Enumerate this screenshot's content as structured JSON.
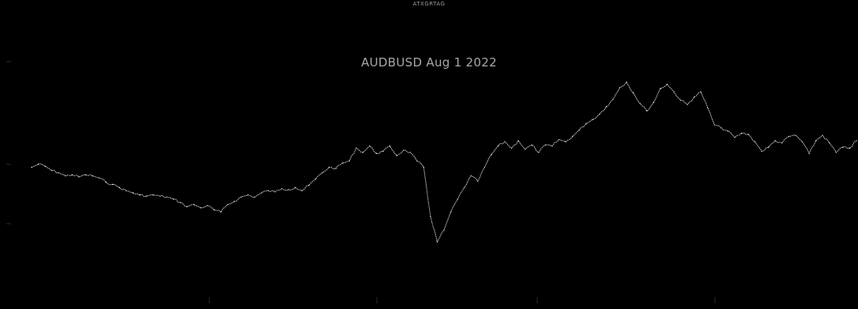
{
  "header": {
    "top_label": "ATXGRTAG"
  },
  "chart_data": {
    "type": "line",
    "title": "AUDBUSD Aug 1 2022",
    "xlabel": "",
    "ylabel": "",
    "grid": false,
    "legend": "none",
    "colors": {
      "background": "#000000",
      "line": "#c8c8c8",
      "text": "#a8a8a8"
    },
    "series": [
      {
        "values": [
          0.688,
          0.691,
          0.689,
          0.685,
          0.683,
          0.68,
          0.681,
          0.679,
          0.681,
          0.68,
          0.678,
          0.674,
          0.672,
          0.669,
          0.666,
          0.664,
          0.662,
          0.661,
          0.662,
          0.661,
          0.66,
          0.658,
          0.655,
          0.651,
          0.653,
          0.65,
          0.652,
          0.648,
          0.646,
          0.653,
          0.656,
          0.66,
          0.662,
          0.66,
          0.664,
          0.666,
          0.665,
          0.668,
          0.667,
          0.669,
          0.666,
          0.671,
          0.677,
          0.683,
          0.688,
          0.687,
          0.692,
          0.694,
          0.706,
          0.702,
          0.708,
          0.701,
          0.703,
          0.708,
          0.699,
          0.704,
          0.702,
          0.694,
          0.688,
          0.642,
          0.618,
          0.629,
          0.646,
          0.658,
          0.669,
          0.68,
          0.675,
          0.688,
          0.7,
          0.708,
          0.712,
          0.706,
          0.713,
          0.705,
          0.709,
          0.702,
          0.709,
          0.708,
          0.714,
          0.712,
          0.717,
          0.723,
          0.729,
          0.733,
          0.738,
          0.745,
          0.752,
          0.763,
          0.768,
          0.758,
          0.748,
          0.741,
          0.749,
          0.762,
          0.766,
          0.759,
          0.751,
          0.747,
          0.754,
          0.759,
          0.744,
          0.728,
          0.725,
          0.722,
          0.716,
          0.72,
          0.719,
          0.712,
          0.703,
          0.707,
          0.713,
          0.711,
          0.717,
          0.718,
          0.712,
          0.701,
          0.713,
          0.718,
          0.711,
          0.702,
          0.707,
          0.706,
          0.713
        ]
      }
    ]
  }
}
